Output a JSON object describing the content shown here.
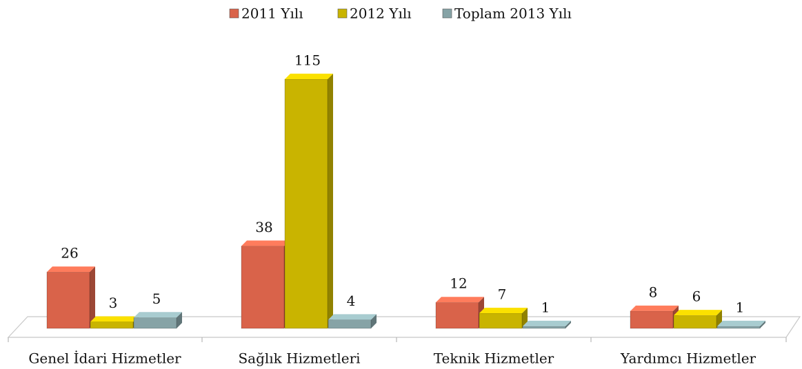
{
  "chart_data": {
    "type": "bar",
    "categories": [
      "Genel İdari Hizmetler",
      "Sağlık Hizmetleri",
      "Teknik Hizmetler",
      "Yardımcı Hizmetler"
    ],
    "series": [
      {
        "name": "2011 Yılı",
        "color": "#d9634a",
        "values": [
          26,
          38,
          12,
          8
        ]
      },
      {
        "name": "2012 Yılı",
        "color": "#c9b400",
        "values": [
          3,
          115,
          7,
          6
        ]
      },
      {
        "name": "Toplam 2013 Yılı",
        "color": "#86a3a6",
        "values": [
          5,
          4,
          1,
          1
        ]
      }
    ],
    "legend": "top",
    "data_labels": true
  }
}
